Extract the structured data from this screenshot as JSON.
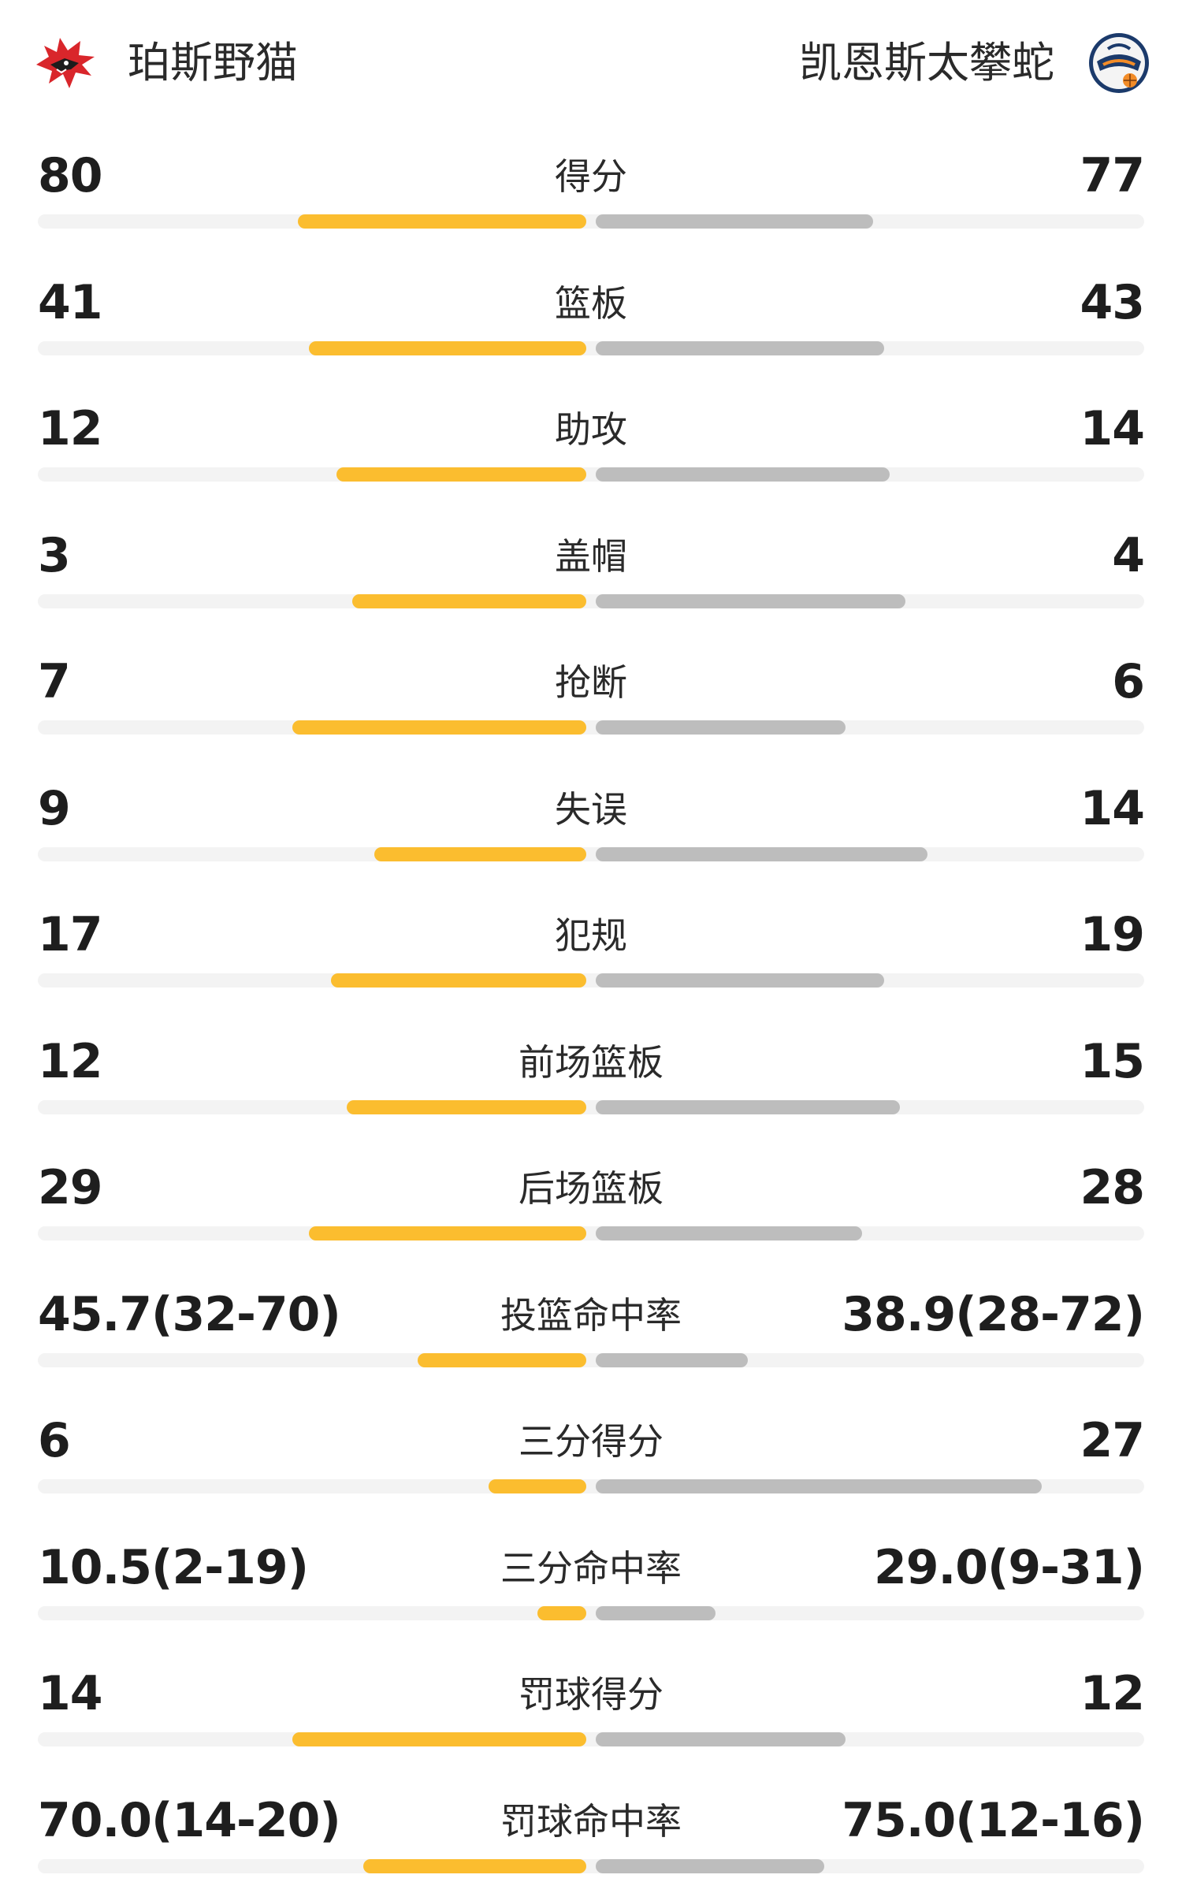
{
  "header": {
    "home_team": "珀斯野猫",
    "away_team": "凯恩斯太攀蛇",
    "home_logo_icon": "wildcat-logo-icon",
    "away_logo_icon": "taipans-logo-icon"
  },
  "colors": {
    "home_bar": "#fbbd2f",
    "away_bar": "#bdbdbd",
    "track": "#f3f3f3"
  },
  "stats": [
    {
      "label": "得分",
      "home": "80",
      "away": "77",
      "home_fill": 0.53,
      "away_fill": 0.51
    },
    {
      "label": "篮板",
      "home": "41",
      "away": "43",
      "home_fill": 0.51,
      "away_fill": 0.53
    },
    {
      "label": "助攻",
      "home": "12",
      "away": "14",
      "home_fill": 0.46,
      "away_fill": 0.54
    },
    {
      "label": "盖帽",
      "home": "3",
      "away": "4",
      "home_fill": 0.43,
      "away_fill": 0.57
    },
    {
      "label": "抢断",
      "home": "7",
      "away": "6",
      "home_fill": 0.54,
      "away_fill": 0.46
    },
    {
      "label": "失误",
      "home": "9",
      "away": "14",
      "home_fill": 0.39,
      "away_fill": 0.61
    },
    {
      "label": "犯规",
      "home": "17",
      "away": "19",
      "home_fill": 0.47,
      "away_fill": 0.53
    },
    {
      "label": "前场篮板",
      "home": "12",
      "away": "15",
      "home_fill": 0.44,
      "away_fill": 0.56
    },
    {
      "label": "后场篮板",
      "home": "29",
      "away": "28",
      "home_fill": 0.51,
      "away_fill": 0.49
    },
    {
      "label": "投篮命中率",
      "home": "45.7(32-70)",
      "away": "38.9(28-72)",
      "home_fill": 0.31,
      "away_fill": 0.28
    },
    {
      "label": "三分得分",
      "home": "6",
      "away": "27",
      "home_fill": 0.18,
      "away_fill": 0.82
    },
    {
      "label": "三分命中率",
      "home": "10.5(2-19)",
      "away": "29.0(9-31)",
      "home_fill": 0.09,
      "away_fill": 0.22
    },
    {
      "label": "罚球得分",
      "home": "14",
      "away": "12",
      "home_fill": 0.54,
      "away_fill": 0.46
    },
    {
      "label": "罚球命中率",
      "home": "70.0(14-20)",
      "away": "75.0(12-16)",
      "home_fill": 0.41,
      "away_fill": 0.42
    }
  ]
}
